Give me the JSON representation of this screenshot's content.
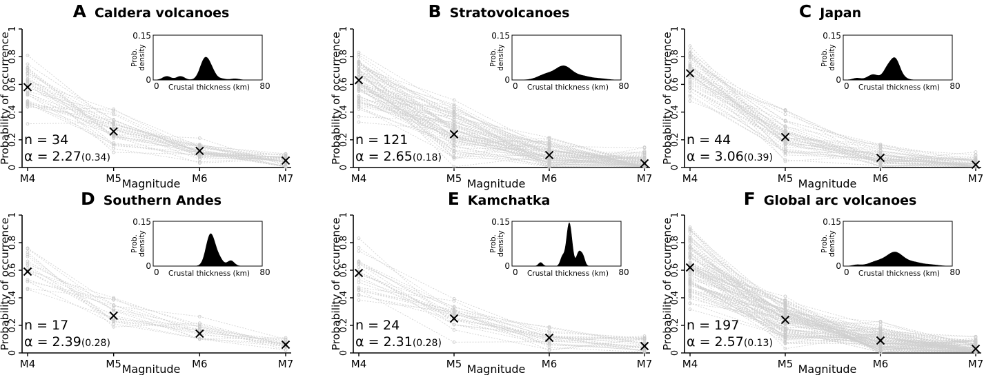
{
  "figure": {
    "y_axis_label": "Probability of occurrence",
    "x_axis_label": "Magnitude",
    "x_categories": [
      "M4",
      "M5",
      "M6",
      "M7"
    ],
    "y_ticks": [
      "0",
      "0.2",
      "0.4",
      "0.6",
      "0.8",
      "1"
    ],
    "inset": {
      "xlabel": "Crustal thickness (km)",
      "ylabel_line1": "Prob.",
      "ylabel_line2": "density",
      "x_ticks": [
        "0",
        "80"
      ],
      "y_ticks": [
        "0",
        "0.15"
      ]
    }
  },
  "chart_data": [
    {
      "type": "line",
      "letter": "A",
      "title": "Caldera volcanoes",
      "ylim": [
        0,
        1
      ],
      "categories": [
        "M4",
        "M5",
        "M6",
        "M7"
      ],
      "mean_values": [
        0.58,
        0.26,
        0.12,
        0.05
      ],
      "n_label": "n = 34",
      "alpha_label": "α = 2.27",
      "alpha_se": "(0.34)",
      "n_lines": 34,
      "spread": [
        0.1,
        0.07,
        0.045,
        0.035
      ],
      "inset_peaks": [
        [
          10,
          0.012,
          3
        ],
        [
          20,
          0.012,
          3
        ],
        [
          38,
          0.07,
          3.5
        ],
        [
          43,
          0.022,
          3
        ],
        [
          50,
          0.004,
          3
        ],
        [
          60,
          0.004,
          3
        ]
      ]
    },
    {
      "type": "line",
      "letter": "B",
      "title": "Stratovolcanoes",
      "ylim": [
        0,
        1
      ],
      "categories": [
        "M4",
        "M5",
        "M6",
        "M7"
      ],
      "mean_values": [
        0.63,
        0.24,
        0.09,
        0.03
      ],
      "n_label": "n = 121",
      "alpha_label": "α = 2.65",
      "alpha_se": "(0.18)",
      "n_lines": 70,
      "spread": [
        0.12,
        0.1,
        0.06,
        0.045
      ],
      "inset_peaks": [
        [
          25,
          0.018,
          6
        ],
        [
          38,
          0.045,
          6
        ],
        [
          52,
          0.012,
          6
        ],
        [
          65,
          0.004,
          5
        ]
      ]
    },
    {
      "type": "line",
      "letter": "C",
      "title": "Japan",
      "ylim": [
        0,
        1
      ],
      "categories": [
        "M4",
        "M5",
        "M6",
        "M7"
      ],
      "mean_values": [
        0.68,
        0.22,
        0.07,
        0.02
      ],
      "n_label": "n = 44",
      "alpha_label": "α = 3.06",
      "alpha_se": "(0.39)",
      "n_lines": 44,
      "spread": [
        0.11,
        0.09,
        0.045,
        0.04
      ],
      "inset_peaks": [
        [
          10,
          0.006,
          3
        ],
        [
          22,
          0.018,
          4
        ],
        [
          32,
          0.03,
          3
        ],
        [
          38,
          0.07,
          3.5
        ],
        [
          45,
          0.004,
          3
        ]
      ]
    },
    {
      "type": "line",
      "letter": "D",
      "title": "Southern Andes",
      "ylim": [
        0,
        1
      ],
      "categories": [
        "M4",
        "M5",
        "M6",
        "M7"
      ],
      "mean_values": [
        0.59,
        0.27,
        0.14,
        0.06
      ],
      "n_label": "n = 17",
      "alpha_label": "α = 2.39",
      "alpha_se": "(0.28)",
      "n_lines": 17,
      "spread": [
        0.09,
        0.08,
        0.05,
        0.025
      ],
      "inset_peaks": [
        [
          42,
          0.105,
          3.2
        ],
        [
          48,
          0.025,
          3
        ],
        [
          57,
          0.018,
          2.5
        ]
      ]
    },
    {
      "type": "line",
      "letter": "E",
      "title": "Kamchatka",
      "ylim": [
        0,
        1
      ],
      "categories": [
        "M4",
        "M5",
        "M6",
        "M7"
      ],
      "mean_values": [
        0.58,
        0.25,
        0.11,
        0.05
      ],
      "n_label": "n = 24",
      "alpha_label": "α = 2.31",
      "alpha_se": "(0.28)",
      "n_lines": 24,
      "spread": [
        0.1,
        0.09,
        0.055,
        0.04
      ],
      "inset_peaks": [
        [
          21,
          0.012,
          1.5
        ],
        [
          37,
          0.03,
          1.5
        ],
        [
          42,
          0.145,
          2
        ],
        [
          49,
          0.045,
          1.7
        ],
        [
          52,
          0.03,
          1.5
        ]
      ]
    },
    {
      "type": "line",
      "letter": "F",
      "title": "Global arc volcanoes",
      "ylim": [
        0,
        1
      ],
      "categories": [
        "M4",
        "M5",
        "M6",
        "M7"
      ],
      "mean_values": [
        0.62,
        0.24,
        0.09,
        0.03
      ],
      "n_label": "n = 197",
      "alpha_label": "α = 2.57",
      "alpha_se": "(0.13)",
      "n_lines": 90,
      "spread": [
        0.13,
        0.1,
        0.06,
        0.045
      ],
      "inset_peaks": [
        [
          10,
          0.004,
          3
        ],
        [
          25,
          0.015,
          6
        ],
        [
          38,
          0.045,
          6
        ],
        [
          52,
          0.012,
          6
        ],
        [
          65,
          0.004,
          5
        ]
      ]
    }
  ]
}
